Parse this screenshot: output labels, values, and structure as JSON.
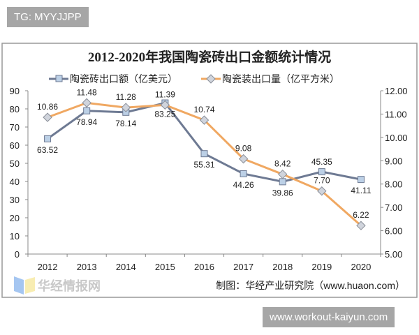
{
  "top_tag": "TG: MYYJJPP",
  "bottom_tag": "www.workout-kaiyun.com",
  "source_note": "制图：华经产业研究院（www.huaon.com）",
  "watermark_logo": "华经情报网 huaon.com",
  "chart_data": {
    "type": "line",
    "title": "2012-2020年我国陶瓷砖出口金额统计情况",
    "categories": [
      "2012",
      "2013",
      "2014",
      "2015",
      "2016",
      "2017",
      "2018",
      "2019",
      "2020"
    ],
    "y_left": {
      "ylim": [
        0,
        90
      ],
      "ticks": [
        "0",
        "10",
        "20",
        "30",
        "40",
        "50",
        "60",
        "70",
        "80",
        "90"
      ]
    },
    "y_right": {
      "ylim": [
        5,
        12
      ],
      "ticks": [
        "5.00",
        "6.00",
        "7.00",
        "8.00",
        "9.00",
        "10.00",
        "11.00",
        "12.00"
      ]
    },
    "legend_placement": "top",
    "grid": false,
    "series": [
      {
        "name": "陶瓷砖出口额（亿美元）",
        "axis": "left",
        "color": "#6e7a93",
        "marker": "square",
        "values": [
          63.52,
          78.94,
          78.14,
          83.25,
          55.31,
          44.26,
          39.86,
          45.35,
          41.11
        ],
        "labels": [
          "63.52",
          "78.94",
          "78.14",
          "83.25",
          "55.31",
          "44.26",
          "39.86",
          "45.35",
          "41.11"
        ]
      },
      {
        "name": "陶瓷装出口量（亿平方米）",
        "axis": "right",
        "color": "#f0a862",
        "marker": "diamond",
        "values": [
          10.86,
          11.48,
          11.28,
          11.39,
          10.74,
          9.08,
          8.42,
          7.7,
          6.22
        ],
        "labels": [
          "10.86",
          "11.48",
          "11.28",
          "11.39",
          "10.74",
          "9.08",
          "8.42",
          "7.70",
          "6.22"
        ]
      }
    ]
  }
}
